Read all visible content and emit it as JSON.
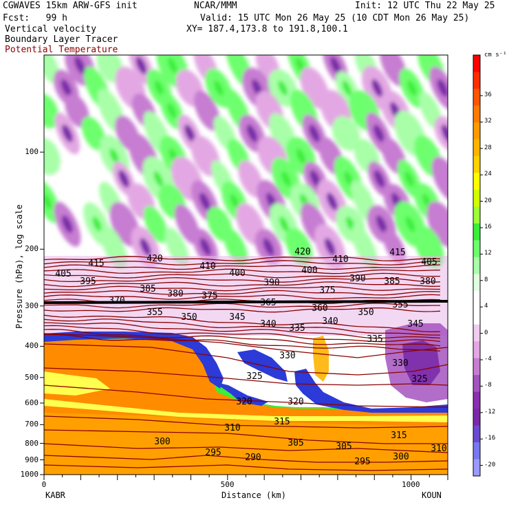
{
  "header": {
    "model": "CGWAVES 15km ARW-GFS init",
    "org": "NCAR/MMM",
    "init": "Init: 12 UTC Thu 22 May 25",
    "fcst": "Fcst:   99 h",
    "valid": "Valid: 15 UTC Mon 26 May 25 (10 CDT Mon 26 May 25)",
    "field1": "Vertical velocity",
    "field2": "Boundary Layer Tracer",
    "field3": "Potential Temperature",
    "xy": "XY= 187.4,173.8 to 191.8,100.1",
    "field3_color": "#8b0000"
  },
  "chart_data": {
    "type": "heatmap",
    "ylabel": "Pressure (hPa), log scale",
    "xlabel": "Distance (km)",
    "y_scale": "log",
    "y_ticks": [
      "100",
      "200",
      "300",
      "400",
      "500",
      "600",
      "700",
      "800",
      "900",
      "1000"
    ],
    "x_ticks": [
      "0",
      "500",
      "1000"
    ],
    "x_range": [
      0,
      1100
    ],
    "y_range": [
      1000,
      50
    ],
    "left_station": "KABR",
    "right_station": "KOUN",
    "colorbar": {
      "units": "cm s⁻¹",
      "labels": [
        "36",
        "32",
        "28",
        "24",
        "20",
        "16",
        "12",
        "8",
        "4",
        "0",
        "-4",
        "-8",
        "-12",
        "-16",
        "-20"
      ],
      "colors": [
        "#ff0000",
        "#ff2d00",
        "#ff5500",
        "#ff7a00",
        "#ff9a00",
        "#ffb400",
        "#ffd200",
        "#ffff00",
        "#d2ff00",
        "#9cff3a",
        "#3aee3a",
        "#6dff6d",
        "#a8ffa8",
        "#e0ffe0",
        "#ffffff",
        "#ffffff",
        "#f0cdf0",
        "#e3a8e3",
        "#c77dd2",
        "#a453c0",
        "#8a2fb0",
        "#7a2aa8",
        "#6a4ad0",
        "#7878f0",
        "#9a9aff"
      ]
    },
    "theta_labels": [
      "420",
      "415",
      "410",
      "405",
      "400",
      "395",
      "390",
      "385",
      "380",
      "375",
      "370",
      "365",
      "360",
      "355",
      "350",
      "345",
      "340",
      "335",
      "330",
      "325",
      "320",
      "315",
      "310",
      "305",
      "300",
      "295",
      "290"
    ],
    "theta_color": "#8b0000",
    "tracer_color": "#ff8c00"
  }
}
